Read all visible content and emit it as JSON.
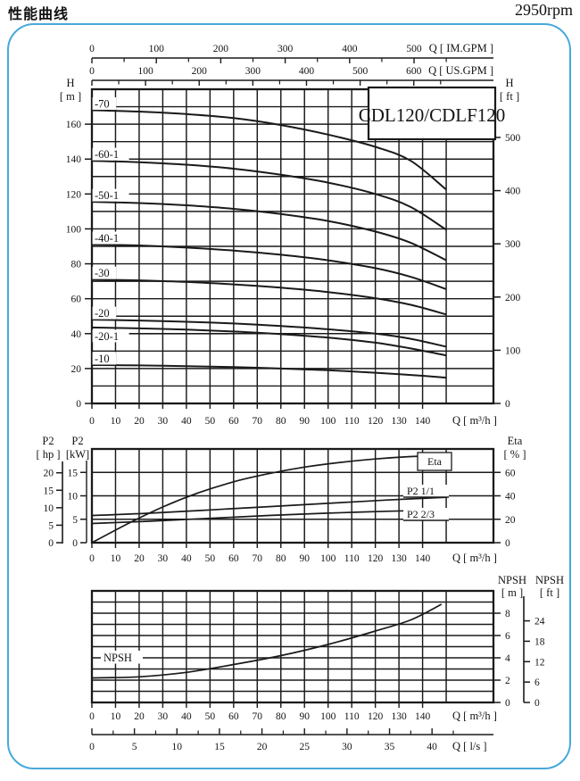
{
  "header": {
    "title": "性能曲线",
    "rpm": "2950rpm"
  },
  "model_label": "CDL120/CDLF120",
  "colors": {
    "frame": "#46a9da",
    "ink": "#141414",
    "line": "#1a1a1a"
  },
  "axes": {
    "im_gpm": {
      "label": "Q [ IM.GPM ]",
      "ticks": [
        0,
        100,
        200,
        300,
        400,
        500
      ]
    },
    "us_gpm": {
      "label": "Q [ US.GPM ]",
      "ticks": [
        0,
        100,
        200,
        300,
        400,
        500,
        600
      ]
    },
    "q_m3h": {
      "label": "Q [ m³/h ]",
      "ticks": [
        0,
        10,
        20,
        30,
        40,
        50,
        60,
        70,
        80,
        90,
        100,
        110,
        120,
        130,
        140
      ]
    },
    "q_ls": {
      "label": "Q [ l/s ]",
      "ticks": [
        0,
        5,
        10,
        15,
        20,
        25,
        30,
        35,
        40
      ]
    }
  },
  "chart_data": [
    {
      "type": "line",
      "title": "CDL120/CDLF120",
      "xlabel": "Q [ m³/h ]",
      "xlim": [
        0,
        170
      ],
      "y_left": {
        "title": [
          "H",
          "[ m ]"
        ],
        "unit": "m",
        "ticks": [
          0,
          20,
          40,
          60,
          80,
          100,
          120,
          140,
          160
        ],
        "ylim": [
          0,
          180
        ]
      },
      "y_right": {
        "title": [
          "H",
          "[ ft ]"
        ],
        "unit": "ft",
        "ticks": [
          0,
          100,
          200,
          300,
          400,
          500
        ]
      },
      "grid": "on",
      "series": [
        {
          "name": "-70",
          "points": [
            [
              0,
              168
            ],
            [
              20,
              167.2
            ],
            [
              40,
              165.8
            ],
            [
              60,
              163.5
            ],
            [
              80,
              159.5
            ],
            [
              100,
              154
            ],
            [
              120,
              147
            ],
            [
              135,
              139
            ],
            [
              150,
              122.5
            ]
          ]
        },
        {
          "name": "-60-1",
          "points": [
            [
              0,
              139
            ],
            [
              20,
              138.2
            ],
            [
              40,
              136.8
            ],
            [
              60,
              134.5
            ],
            [
              80,
              131
            ],
            [
              100,
              126.5
            ],
            [
              120,
              120
            ],
            [
              135,
              112.5
            ],
            [
              150,
              99.5
            ]
          ]
        },
        {
          "name": "-50-1",
          "points": [
            [
              0,
              115.5
            ],
            [
              20,
              114.8
            ],
            [
              40,
              113.5
            ],
            [
              60,
              111.5
            ],
            [
              80,
              108.5
            ],
            [
              100,
              104.5
            ],
            [
              120,
              98.5
            ],
            [
              135,
              92
            ],
            [
              150,
              82
            ]
          ]
        },
        {
          "name": "-40-1",
          "points": [
            [
              0,
              91
            ],
            [
              20,
              90.5
            ],
            [
              40,
              89.3
            ],
            [
              60,
              87.6
            ],
            [
              80,
              85.2
            ],
            [
              100,
              82
            ],
            [
              120,
              77.5
            ],
            [
              135,
              72.5
            ],
            [
              150,
              65.5
            ]
          ]
        },
        {
          "name": "-30",
          "points": [
            [
              0,
              71
            ],
            [
              20,
              70.5
            ],
            [
              40,
              69.6
            ],
            [
              60,
              68.2
            ],
            [
              80,
              66.3
            ],
            [
              100,
              63.8
            ],
            [
              120,
              60.3
            ],
            [
              135,
              56.5
            ],
            [
              150,
              51
            ]
          ]
        },
        {
          "name": "-20",
          "points": [
            [
              0,
              48
            ],
            [
              20,
              47.5
            ],
            [
              40,
              46.8
            ],
            [
              60,
              45.8
            ],
            [
              80,
              44.4
            ],
            [
              100,
              42.5
            ],
            [
              120,
              40
            ],
            [
              135,
              37
            ],
            [
              150,
              32.5
            ]
          ]
        },
        {
          "name": "-20-1",
          "points": [
            [
              0,
              43.5
            ],
            [
              20,
              43
            ],
            [
              40,
              42.3
            ],
            [
              60,
              41.2
            ],
            [
              80,
              39.7
            ],
            [
              100,
              37.7
            ],
            [
              120,
              34.8
            ],
            [
              135,
              31.5
            ],
            [
              150,
              27.5
            ]
          ]
        },
        {
          "name": "-10",
          "points": [
            [
              0,
              22
            ],
            [
              20,
              21.8
            ],
            [
              40,
              21.4
            ],
            [
              60,
              20.8
            ],
            [
              80,
              20
            ],
            [
              100,
              19
            ],
            [
              120,
              17.6
            ],
            [
              135,
              16.3
            ],
            [
              150,
              14.8
            ]
          ]
        }
      ]
    },
    {
      "type": "line",
      "xlabel": "Q [ m³/h ]",
      "xlim": [
        0,
        170
      ],
      "y_left_outer": {
        "title": [
          "P2",
          "[ hp ]"
        ],
        "unit": "hp",
        "ticks": [
          0,
          5,
          10,
          15,
          20
        ]
      },
      "y_left_inner": {
        "title": [
          "P2",
          "[kW]"
        ],
        "unit": "kW",
        "ticks": [
          0,
          5,
          10,
          15
        ],
        "ylim": [
          0,
          20
        ]
      },
      "y_right": {
        "title": [
          "Eta",
          "[ % ]"
        ],
        "unit": "%",
        "ticks": [
          0,
          20,
          40,
          60
        ],
        "ylim": [
          0,
          80
        ]
      },
      "grid": "on",
      "series": [
        {
          "name": "Eta",
          "axis": "eta",
          "label_style": "box",
          "points": [
            [
              0,
              0
            ],
            [
              15,
              16
            ],
            [
              30,
              30.5
            ],
            [
              45,
              42.5
            ],
            [
              60,
              52
            ],
            [
              75,
              59
            ],
            [
              90,
              64.5
            ],
            [
              105,
              68.5
            ],
            [
              120,
              71.5
            ],
            [
              135,
              73.5
            ],
            [
              150,
              74.5
            ]
          ]
        },
        {
          "name": "P2  1/1",
          "axis": "kw",
          "label_style": "underline",
          "points": [
            [
              0,
              5.8
            ],
            [
              25,
              6.3
            ],
            [
              50,
              7.0
            ],
            [
              75,
              7.7
            ],
            [
              100,
              8.4
            ],
            [
              125,
              9.1
            ],
            [
              150,
              9.7
            ]
          ]
        },
        {
          "name": "P2  2/3",
          "axis": "kw",
          "label_style": "underline",
          "points": [
            [
              0,
              4.1
            ],
            [
              25,
              4.6
            ],
            [
              50,
              5.2
            ],
            [
              75,
              5.8
            ],
            [
              100,
              6.3
            ],
            [
              125,
              6.7
            ],
            [
              150,
              7.0
            ]
          ]
        }
      ]
    },
    {
      "type": "line",
      "xlabel": "Q [ m³/h ]",
      "xlim": [
        0,
        170
      ],
      "y_right_m": {
        "title": [
          "NPSH",
          "[ m ]"
        ],
        "unit": "m",
        "ticks": [
          0,
          2,
          4,
          6,
          8
        ],
        "ylim": [
          0,
          10
        ]
      },
      "y_right_ft": {
        "title": [
          "NPSH",
          "[ ft ]"
        ],
        "unit": "ft",
        "ticks": [
          0,
          6,
          12,
          18,
          24
        ]
      },
      "grid": "on",
      "series": [
        {
          "name": "NPSH",
          "points": [
            [
              0,
              2.2
            ],
            [
              20,
              2.3
            ],
            [
              40,
              2.7
            ],
            [
              60,
              3.4
            ],
            [
              80,
              4.2
            ],
            [
              100,
              5.2
            ],
            [
              120,
              6.4
            ],
            [
              135,
              7.4
            ],
            [
              148,
              8.8
            ]
          ]
        }
      ]
    }
  ]
}
